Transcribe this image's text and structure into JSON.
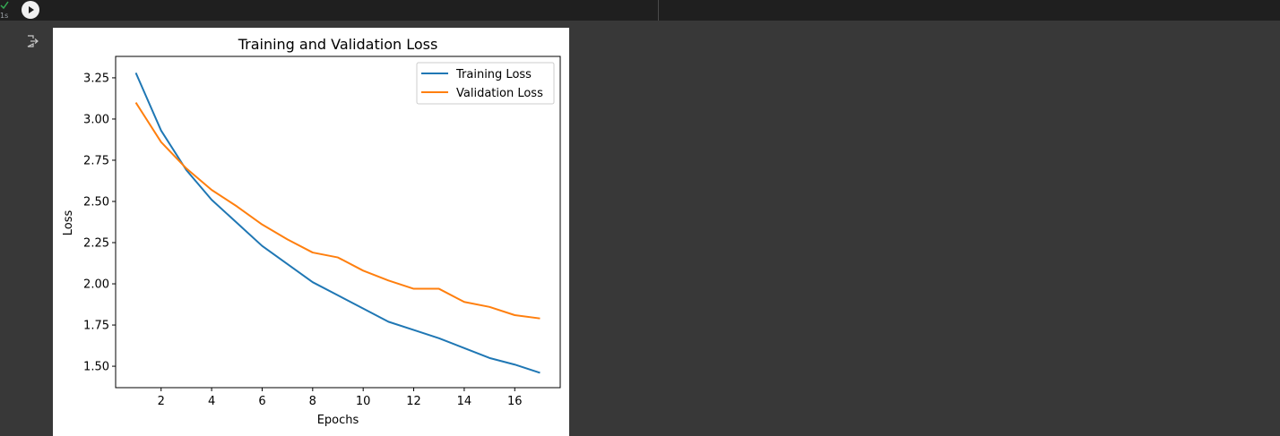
{
  "cell": {
    "status_icon": "check-icon",
    "exec_time": "1s",
    "run_icon": "play-icon",
    "output_icon": "output-redirect-icon"
  },
  "colors": {
    "training": "#1f77b4",
    "validation": "#ff7f0e",
    "status_ok": "#34a853"
  },
  "chart_data": {
    "type": "line",
    "title": "Training and Validation Loss",
    "xlabel": "Epochs",
    "ylabel": "Loss",
    "xlim": [
      0.2,
      17.8
    ],
    "ylim": [
      1.37,
      3.38
    ],
    "xticks": [
      2,
      4,
      6,
      8,
      10,
      12,
      14,
      16
    ],
    "yticks": [
      1.5,
      1.75,
      2.0,
      2.25,
      2.5,
      2.75,
      3.0,
      3.25
    ],
    "ytick_labels": [
      "1.50",
      "1.75",
      "2.00",
      "2.25",
      "2.50",
      "2.75",
      "3.00",
      "3.25"
    ],
    "grid": false,
    "legend_position": "top-right",
    "x": [
      1,
      2,
      3,
      4,
      5,
      6,
      7,
      8,
      9,
      10,
      11,
      12,
      13,
      14,
      15,
      16,
      17
    ],
    "series": [
      {
        "name": "Training Loss",
        "values": [
          3.28,
          2.93,
          2.69,
          2.51,
          2.37,
          2.23,
          2.12,
          2.01,
          1.93,
          1.85,
          1.77,
          1.72,
          1.67,
          1.61,
          1.55,
          1.51,
          1.46
        ]
      },
      {
        "name": "Validation Loss",
        "values": [
          3.1,
          2.86,
          2.7,
          2.57,
          2.47,
          2.36,
          2.27,
          2.19,
          2.16,
          2.08,
          2.02,
          1.97,
          1.97,
          1.89,
          1.86,
          1.81,
          1.79
        ]
      }
    ]
  }
}
